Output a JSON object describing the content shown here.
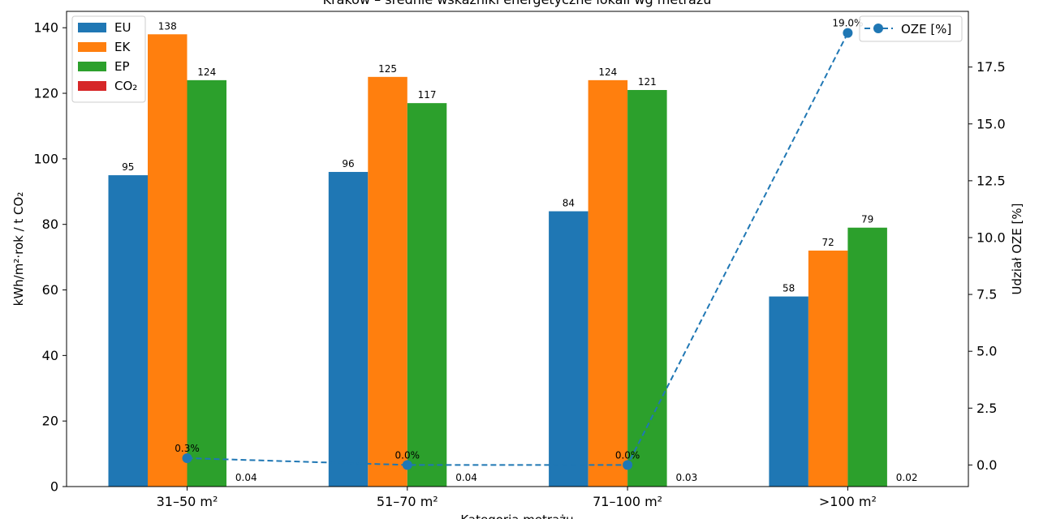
{
  "chart_data": {
    "type": "bar",
    "title": "Kraków – średnie wskaźniki energetyczne lokali wg metrażu",
    "xlabel": "Kategoria metrażu",
    "ylabel": "kWh/m²·rok / t CO₂",
    "y2label": "Udział OZE [%]",
    "categories": [
      "31–50 m²",
      "51–70 m²",
      "71–100 m²",
      ">100 m²"
    ],
    "ylim": [
      0,
      145
    ],
    "y2lim": [
      -0.95,
      19.95
    ],
    "yticks": [
      0,
      20,
      40,
      60,
      80,
      100,
      120,
      140
    ],
    "y2ticks": [
      "0.0",
      "2.5",
      "5.0",
      "7.5",
      "10.0",
      "12.5",
      "15.0",
      "17.5"
    ],
    "series": [
      {
        "name": "EU",
        "color": "#1f77b4",
        "values": [
          95,
          96,
          84,
          58
        ],
        "labels": [
          "95",
          "96",
          "84",
          "58"
        ]
      },
      {
        "name": "EK",
        "color": "#ff7f0e",
        "values": [
          138,
          125,
          124,
          72
        ],
        "labels": [
          "138",
          "125",
          "124",
          "72"
        ]
      },
      {
        "name": "EP",
        "color": "#2ca02c",
        "values": [
          124,
          117,
          121,
          79
        ],
        "labels": [
          "124",
          "117",
          "121",
          "79"
        ]
      },
      {
        "name": "CO₂",
        "color": "#d62728",
        "values": [
          0.04,
          0.04,
          0.03,
          0.02
        ],
        "labels": [
          "0.04",
          "0.04",
          "0.03",
          "0.02"
        ]
      }
    ],
    "line_series": {
      "name": "OZE [%]",
      "color": "#1f77b4",
      "axis": "right",
      "style": "dashed",
      "values": [
        0.3,
        0.0,
        0.0,
        19.0
      ],
      "labels": [
        "0.3%",
        "0.0%",
        "0.0%",
        "19.0%"
      ]
    },
    "legend_left_location": "top-left",
    "legend_right_location": "top-right",
    "grid": false
  }
}
